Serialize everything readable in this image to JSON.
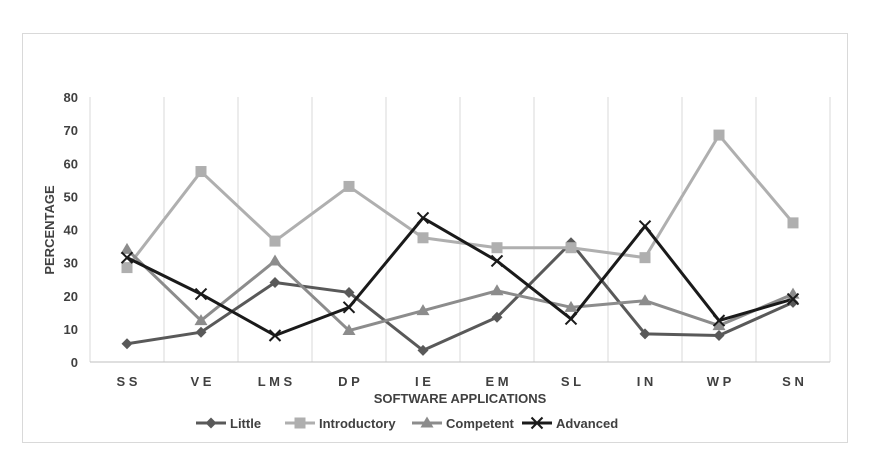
{
  "chart_data": {
    "type": "line",
    "title": "",
    "xlabel": "SOFTWARE APPLICATIONS",
    "ylabel": "PERCENTAGE",
    "categories": [
      "SS",
      "VE",
      "LMS",
      "DP",
      "IE",
      "EM",
      "SL",
      "IN",
      "WP",
      "SN"
    ],
    "category_labels": [
      "S S",
      "V E",
      "L M S",
      "D P",
      "I E",
      "E M",
      "S L",
      "I N",
      "W P",
      "S N"
    ],
    "ylim": [
      0,
      80
    ],
    "yticks": [
      0,
      10,
      20,
      30,
      40,
      50,
      60,
      70,
      80
    ],
    "grid": "vertical-only",
    "legend_position": "bottom",
    "series": [
      {
        "name": "Little",
        "marker": "diamond",
        "color": "#595959",
        "values": [
          5.5,
          9,
          24,
          21,
          3.5,
          13.5,
          36,
          8.5,
          8,
          18
        ]
      },
      {
        "name": "Introductory",
        "marker": "square",
        "color": "#afafaf",
        "values": [
          28.5,
          57.5,
          36.5,
          53,
          37.5,
          34.5,
          34.5,
          31.5,
          68.5,
          42
        ]
      },
      {
        "name": "Competent",
        "marker": "triangle",
        "color": "#8c8c8c",
        "values": [
          34,
          12.5,
          30.5,
          9.5,
          15.5,
          21.5,
          16.5,
          18.5,
          11,
          20.5
        ]
      },
      {
        "name": "Advanced",
        "marker": "x",
        "color": "#1a1a1a",
        "values": [
          31.5,
          20.5,
          8,
          16.5,
          43.5,
          30.5,
          13,
          41,
          12.5,
          19
        ]
      }
    ]
  }
}
